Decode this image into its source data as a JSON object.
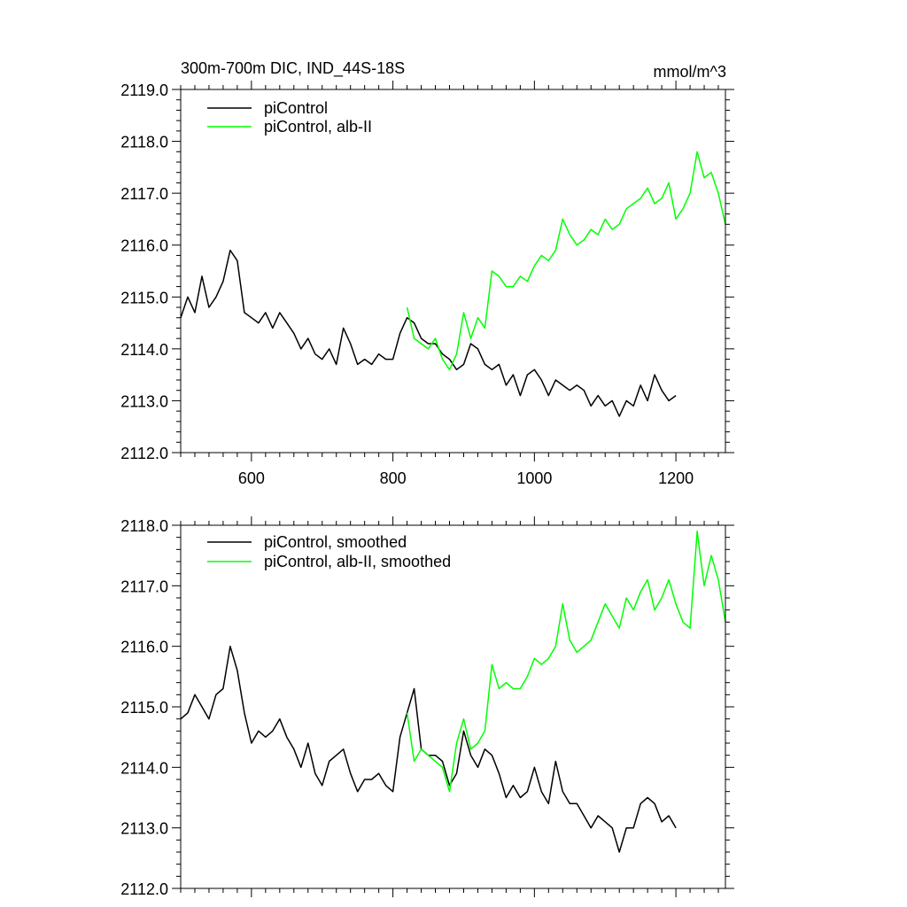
{
  "chart_data": [
    {
      "type": "line",
      "title": "300m-700m DIC, IND_44S-18S",
      "units": "mmol/m^3",
      "xlim": [
        500,
        1270
      ],
      "ylim": [
        2112.0,
        2119.0
      ],
      "x_ticks": [
        600,
        800,
        1000,
        1200
      ],
      "x_tick_labels": [
        "600",
        "800",
        "1000",
        "1200"
      ],
      "y_ticks": [
        2112,
        2113,
        2114,
        2115,
        2116,
        2117,
        2118,
        2119
      ],
      "y_tick_labels": [
        "2112.0",
        "2113.0",
        "2114.0",
        "2115.0",
        "2116.0",
        "2117.0",
        "2118.0",
        "2119.0"
      ],
      "grid": false,
      "legend_placement": "top-left",
      "series": [
        {
          "name": "piControl",
          "color": "#000000",
          "x": [
            500,
            510,
            520,
            530,
            540,
            550,
            560,
            570,
            580,
            590,
            600,
            610,
            620,
            630,
            640,
            650,
            660,
            670,
            680,
            690,
            700,
            710,
            720,
            730,
            740,
            750,
            760,
            770,
            780,
            790,
            800,
            810,
            820,
            830,
            840,
            850,
            860,
            870,
            880,
            890,
            900,
            910,
            920,
            930,
            940,
            950,
            960,
            970,
            980,
            990,
            1000,
            1010,
            1020,
            1030,
            1040,
            1050,
            1060,
            1070,
            1080,
            1090,
            1100,
            1110,
            1120,
            1130,
            1140,
            1150,
            1160,
            1170,
            1180,
            1190,
            1200
          ],
          "y": [
            2114.6,
            2115.0,
            2114.7,
            2115.4,
            2114.8,
            2115.0,
            2115.3,
            2115.9,
            2115.7,
            2114.7,
            2114.6,
            2114.5,
            2114.7,
            2114.4,
            2114.7,
            2114.5,
            2114.3,
            2114.0,
            2114.2,
            2113.9,
            2113.8,
            2114.0,
            2113.7,
            2114.4,
            2114.1,
            2113.7,
            2113.8,
            2113.7,
            2113.9,
            2113.8,
            2113.8,
            2114.3,
            2114.6,
            2114.5,
            2114.2,
            2114.1,
            2114.1,
            2113.9,
            2113.8,
            2113.6,
            2113.7,
            2114.1,
            2114.0,
            2113.7,
            2113.6,
            2113.7,
            2113.3,
            2113.5,
            2113.1,
            2113.5,
            2113.6,
            2113.4,
            2113.1,
            2113.4,
            2113.3,
            2113.2,
            2113.3,
            2113.2,
            2112.9,
            2113.1,
            2112.9,
            2113.0,
            2112.7,
            2113.0,
            2112.9,
            2113.3,
            2113.0,
            2113.5,
            2113.2,
            2113.0,
            2113.1
          ]
        },
        {
          "name": "piControl, alb-II",
          "color": "#00ff00",
          "x": [
            820,
            830,
            840,
            850,
            860,
            870,
            880,
            890,
            900,
            910,
            920,
            930,
            940,
            950,
            960,
            970,
            980,
            990,
            1000,
            1010,
            1020,
            1030,
            1040,
            1050,
            1060,
            1070,
            1080,
            1090,
            1100,
            1110,
            1120,
            1130,
            1140,
            1150,
            1160,
            1170,
            1180,
            1190,
            1200,
            1210,
            1220,
            1230,
            1240,
            1250,
            1260,
            1270
          ],
          "y": [
            2114.8,
            2114.2,
            2114.1,
            2114.0,
            2114.2,
            2113.8,
            2113.6,
            2113.9,
            2114.7,
            2114.2,
            2114.6,
            2114.4,
            2115.5,
            2115.4,
            2115.2,
            2115.2,
            2115.4,
            2115.3,
            2115.6,
            2115.8,
            2115.7,
            2115.9,
            2116.5,
            2116.2,
            2116.0,
            2116.1,
            2116.3,
            2116.2,
            2116.5,
            2116.3,
            2116.4,
            2116.7,
            2116.8,
            2116.9,
            2117.1,
            2116.8,
            2116.9,
            2117.2,
            2116.5,
            2116.7,
            2117.0,
            2117.8,
            2117.3,
            2117.4,
            2117.0,
            2116.4
          ]
        }
      ]
    },
    {
      "type": "line",
      "title": "",
      "xlim": [
        500,
        1270
      ],
      "ylim": [
        2112.0,
        2118.0
      ],
      "x_ticks": [
        600,
        800,
        1000,
        1200
      ],
      "y_ticks": [
        2112,
        2113,
        2114,
        2115,
        2116,
        2117,
        2118
      ],
      "y_tick_labels": [
        "2112.0",
        "2113.0",
        "2114.0",
        "2115.0",
        "2116.0",
        "2117.0",
        "2118.0"
      ],
      "grid": false,
      "legend_placement": "top-left",
      "series": [
        {
          "name": "piControl, smoothed",
          "color": "#000000",
          "x": [
            500,
            510,
            520,
            530,
            540,
            550,
            560,
            570,
            580,
            590,
            600,
            610,
            620,
            630,
            640,
            650,
            660,
            670,
            680,
            690,
            700,
            710,
            720,
            730,
            740,
            750,
            760,
            770,
            780,
            790,
            800,
            810,
            820,
            830,
            840,
            850,
            860,
            870,
            880,
            890,
            900,
            910,
            920,
            930,
            940,
            950,
            960,
            970,
            980,
            990,
            1000,
            1010,
            1020,
            1030,
            1040,
            1050,
            1060,
            1070,
            1080,
            1090,
            1100,
            1110,
            1120,
            1130,
            1140,
            1150,
            1160,
            1170,
            1180,
            1190,
            1200
          ],
          "y": [
            2114.8,
            2114.9,
            2115.2,
            2115.0,
            2114.8,
            2115.2,
            2115.3,
            2116.0,
            2115.6,
            2114.9,
            2114.4,
            2114.6,
            2114.5,
            2114.6,
            2114.8,
            2114.5,
            2114.3,
            2114.0,
            2114.4,
            2113.9,
            2113.7,
            2114.1,
            2114.2,
            2114.3,
            2113.9,
            2113.6,
            2113.8,
            2113.8,
            2113.9,
            2113.7,
            2113.6,
            2114.5,
            2114.9,
            2115.3,
            2114.3,
            2114.2,
            2114.2,
            2114.1,
            2113.7,
            2113.9,
            2114.6,
            2114.2,
            2114.0,
            2114.3,
            2114.2,
            2113.9,
            2113.5,
            2113.7,
            2113.5,
            2113.6,
            2114.0,
            2113.6,
            2113.4,
            2114.1,
            2113.6,
            2113.4,
            2113.4,
            2113.2,
            2113.0,
            2113.2,
            2113.1,
            2113.0,
            2112.6,
            2113.0,
            2113.0,
            2113.4,
            2113.5,
            2113.4,
            2113.1,
            2113.2,
            2113.0
          ]
        },
        {
          "name": "piControl, alb-II, smoothed",
          "color": "#00ff00",
          "x": [
            820,
            830,
            840,
            850,
            860,
            870,
            880,
            890,
            900,
            910,
            920,
            930,
            940,
            950,
            960,
            970,
            980,
            990,
            1000,
            1010,
            1020,
            1030,
            1040,
            1050,
            1060,
            1070,
            1080,
            1090,
            1100,
            1110,
            1120,
            1130,
            1140,
            1150,
            1160,
            1170,
            1180,
            1190,
            1200,
            1210,
            1220,
            1230,
            1240,
            1250,
            1260,
            1270
          ],
          "y": [
            2114.9,
            2114.1,
            2114.3,
            2114.2,
            2114.1,
            2114.0,
            2113.6,
            2114.4,
            2114.8,
            2114.3,
            2114.4,
            2114.6,
            2115.7,
            2115.3,
            2115.4,
            2115.3,
            2115.3,
            2115.5,
            2115.8,
            2115.7,
            2115.8,
            2116.0,
            2116.7,
            2116.1,
            2115.9,
            2116.0,
            2116.1,
            2116.4,
            2116.7,
            2116.5,
            2116.3,
            2116.8,
            2116.6,
            2116.9,
            2117.1,
            2116.6,
            2116.8,
            2117.1,
            2116.7,
            2116.4,
            2116.3,
            2117.9,
            2117.0,
            2117.5,
            2117.1,
            2116.4
          ]
        }
      ]
    }
  ]
}
